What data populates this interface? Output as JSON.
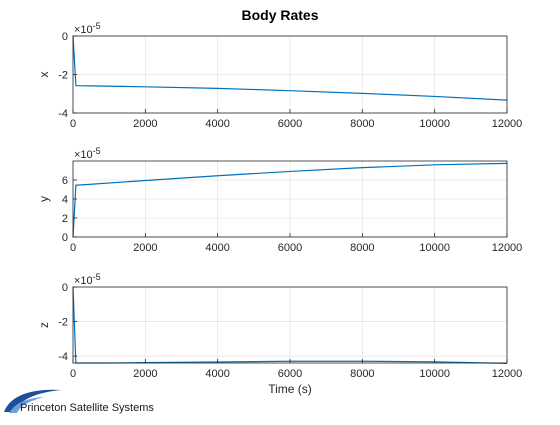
{
  "title": "Body Rates",
  "logo_text": "Princeton Satellite Systems",
  "colors": {
    "line": "#0072BD",
    "grid": "#e6e6e6",
    "axis": "#262626",
    "logo": "#1f4f9a"
  },
  "chart_data": [
    {
      "type": "line",
      "ylabel": "x",
      "xlabel": "",
      "exponent_label": "×10",
      "exponent_power": "-5",
      "xlim": [
        0,
        12000
      ],
      "ylim": [
        -4,
        0
      ],
      "x_ticks": [
        0,
        2000,
        4000,
        6000,
        8000,
        10000,
        12000
      ],
      "y_ticks": [
        -4,
        -2,
        0
      ],
      "grid": true,
      "series": [
        {
          "x": [
            0,
            80,
            500,
            2000,
            4000,
            6000,
            8000,
            10000,
            12000
          ],
          "y": [
            0,
            -2.58,
            -2.59,
            -2.64,
            -2.72,
            -2.84,
            -2.98,
            -3.14,
            -3.33
          ]
        }
      ]
    },
    {
      "type": "line",
      "ylabel": "y",
      "xlabel": "",
      "exponent_label": "×10",
      "exponent_power": "-5",
      "xlim": [
        0,
        12000
      ],
      "ylim": [
        0,
        8
      ],
      "x_ticks": [
        0,
        2000,
        4000,
        6000,
        8000,
        10000,
        12000
      ],
      "y_ticks": [
        0,
        2,
        4,
        6
      ],
      "grid": true,
      "series": [
        {
          "x": [
            0,
            80,
            500,
            2000,
            4000,
            6000,
            8000,
            10000,
            12000
          ],
          "y": [
            0,
            5.45,
            5.55,
            5.95,
            6.45,
            6.9,
            7.3,
            7.6,
            7.75
          ]
        }
      ]
    },
    {
      "type": "line",
      "ylabel": "z",
      "xlabel": "Time (s)",
      "exponent_label": "×10",
      "exponent_power": "-5",
      "xlim": [
        0,
        12000
      ],
      "ylim": [
        -4.4,
        0
      ],
      "x_ticks": [
        0,
        2000,
        4000,
        6000,
        8000,
        10000,
        12000
      ],
      "y_ticks": [
        -4,
        -2,
        0
      ],
      "grid": true,
      "series": [
        {
          "x": [
            0,
            80,
            1000,
            2000,
            4000,
            6000,
            8000,
            10000,
            12000
          ],
          "y": [
            0,
            -4.4,
            -4.4,
            -4.38,
            -4.34,
            -4.3,
            -4.3,
            -4.33,
            -4.42
          ]
        }
      ]
    }
  ]
}
